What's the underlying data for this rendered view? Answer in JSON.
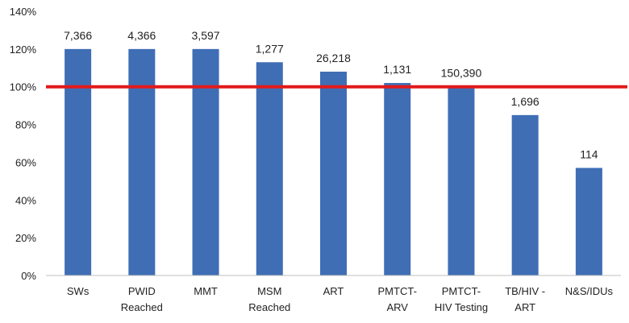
{
  "chart_data": {
    "type": "bar",
    "categories": [
      [
        "SWs"
      ],
      [
        "PWID",
        "Reached"
      ],
      [
        "MMT"
      ],
      [
        "MSM",
        "Reached"
      ],
      [
        "ART"
      ],
      [
        "PMTCT-",
        "ARV"
      ],
      [
        "PMTCT-",
        "HIV Testing"
      ],
      [
        "TB/HIV -",
        "ART"
      ],
      [
        "N&S/IDUs"
      ]
    ],
    "values": [
      120,
      120,
      120,
      113,
      108,
      102,
      100,
      85,
      57
    ],
    "data_labels": [
      "7,366",
      "4,366",
      "3,597",
      "1,277",
      "26,218",
      "1,131",
      "150,390",
      "1,696",
      "114"
    ],
    "ylim": [
      0,
      140
    ],
    "yticks": [
      "0%",
      "20%",
      "40%",
      "60%",
      "80%",
      "100%",
      "120%",
      "140%"
    ],
    "ytick_values": [
      0,
      20,
      40,
      60,
      80,
      100,
      120,
      140
    ],
    "reference_line": 100,
    "colors": {
      "bar": "#3F6EB5",
      "reference_line": "#E21A1A",
      "axis": "#bfbfbf"
    },
    "title": "",
    "xlabel": "",
    "ylabel": "",
    "grid": false,
    "legend": "none"
  }
}
